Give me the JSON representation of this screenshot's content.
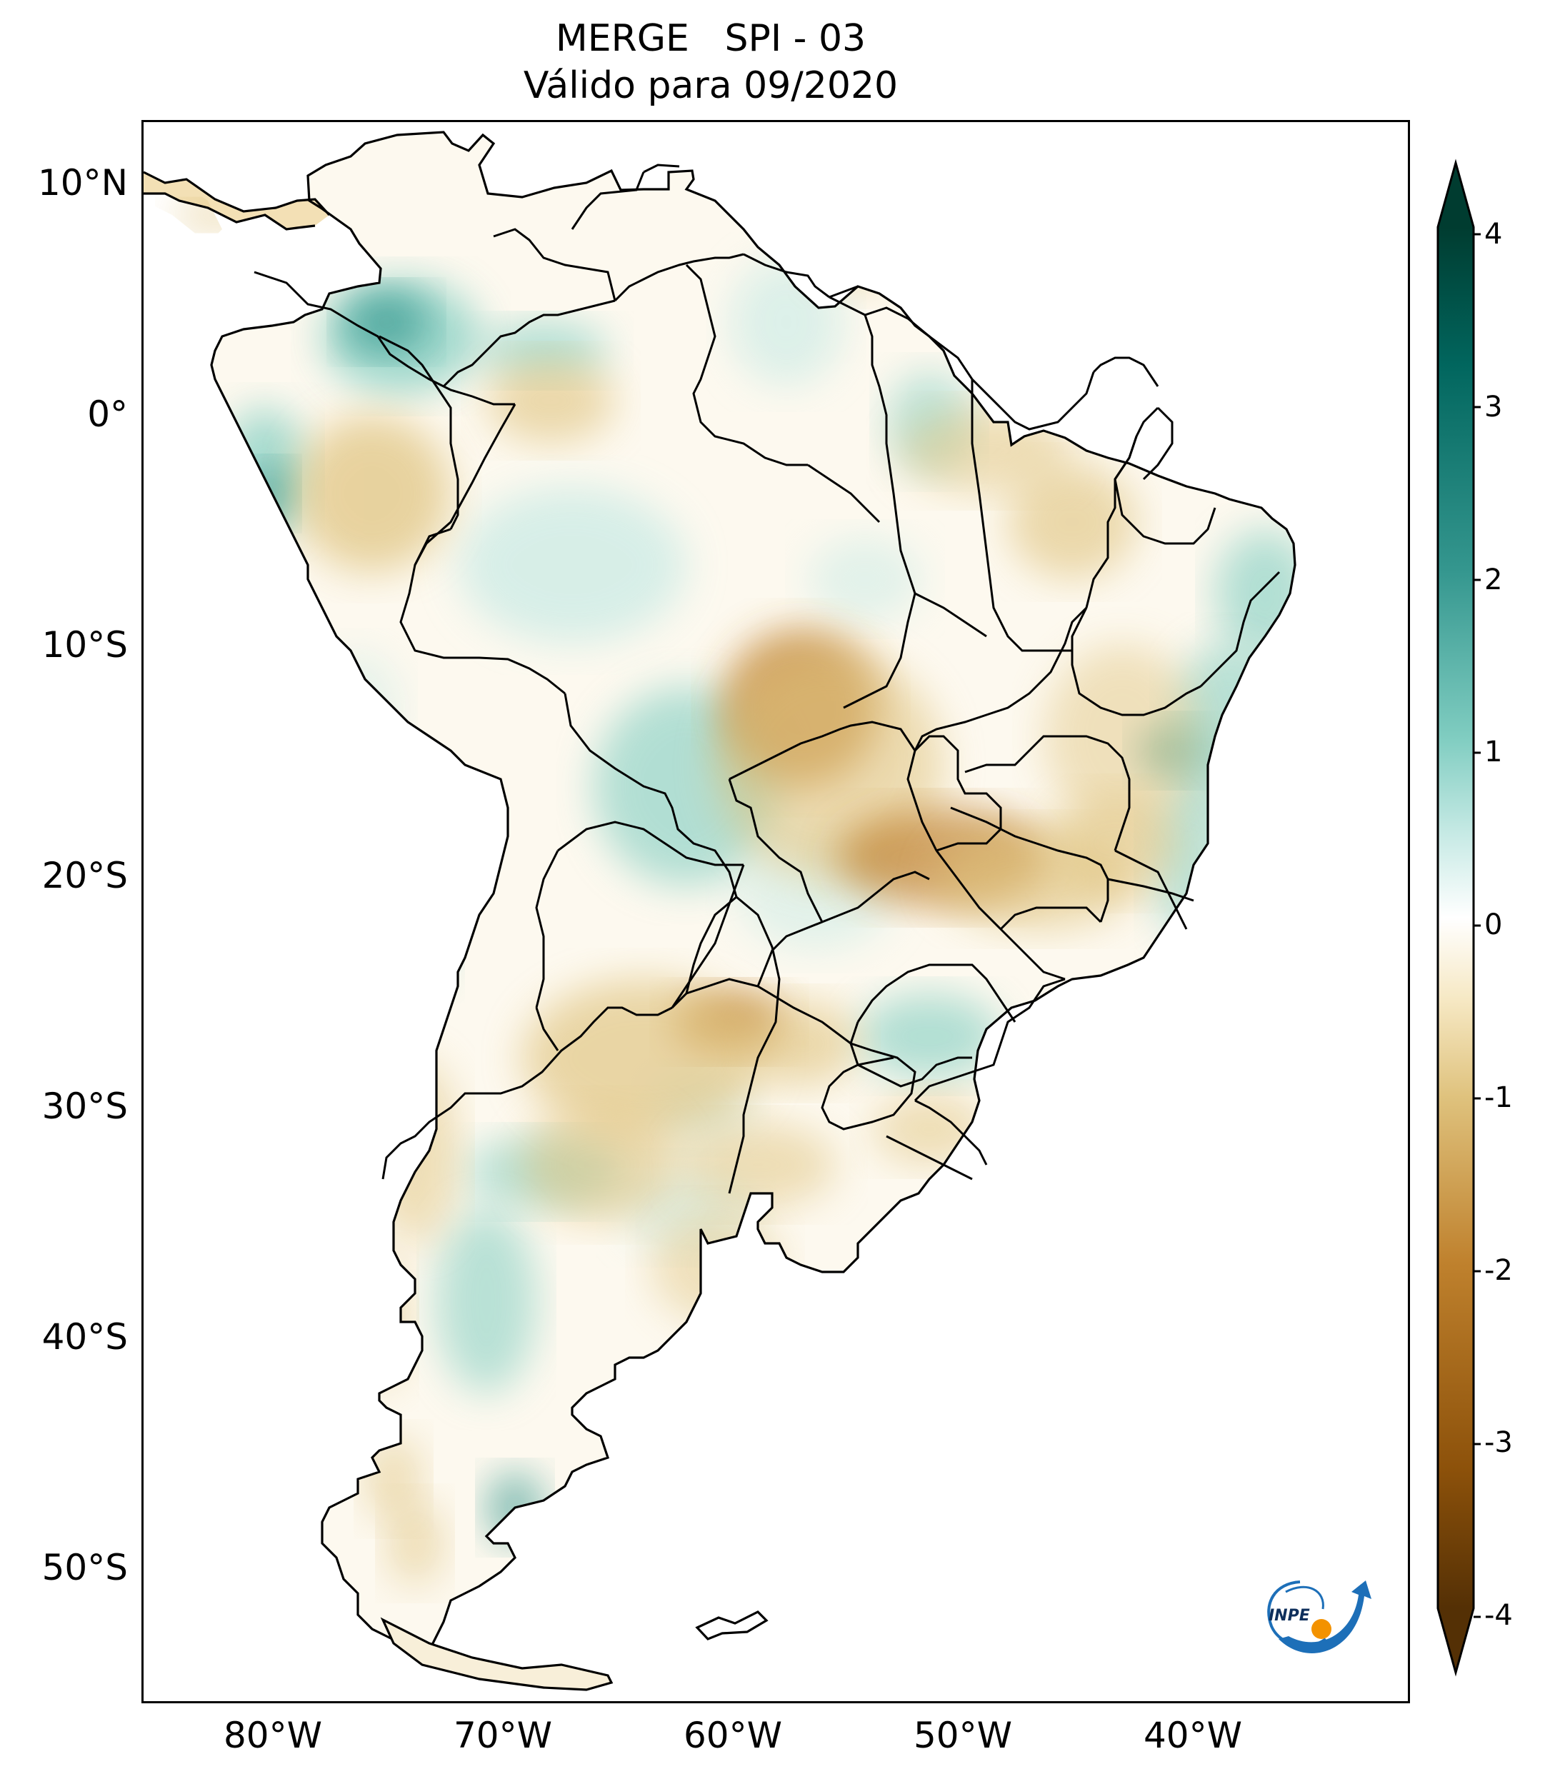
{
  "title": {
    "line1": "MERGE   SPI - 03",
    "line2": "Válido para 09/2020"
  },
  "map": {
    "region": "South America",
    "variable": "SPI - 03",
    "lat_ticks": [
      "10°N",
      "0°",
      "10°S",
      "20°S",
      "30°S",
      "40°S",
      "50°S"
    ],
    "lon_ticks": [
      "80°W",
      "70°W",
      "60°W",
      "50°W",
      "40°W"
    ],
    "extent_lon": [
      -85,
      -30
    ],
    "extent_lat": [
      -56,
      13
    ]
  },
  "colorbar": {
    "min": -4,
    "max": 4,
    "ticks": [
      "4",
      "3",
      "2",
      "1",
      "0",
      "-1",
      "-2",
      "-3",
      "-4"
    ],
    "colormap": "BrBG",
    "extend": "both",
    "colors": {
      "dry_extreme": "#543005",
      "dry_strong": "#8c510a",
      "dry_moderate": "#bf812d",
      "dry_mild": "#dfc27d",
      "dry_light": "#f6e8c3",
      "neutral": "#ffffff",
      "wet_light": "#c7eae5",
      "wet_mild": "#80cdc1",
      "wet_moderate": "#35978f",
      "wet_strong": "#01665e",
      "wet_extreme": "#003c30"
    }
  },
  "logo": {
    "text": "INPE",
    "colors": {
      "ring": "#1d6fb8",
      "dot": "#f39200"
    }
  }
}
